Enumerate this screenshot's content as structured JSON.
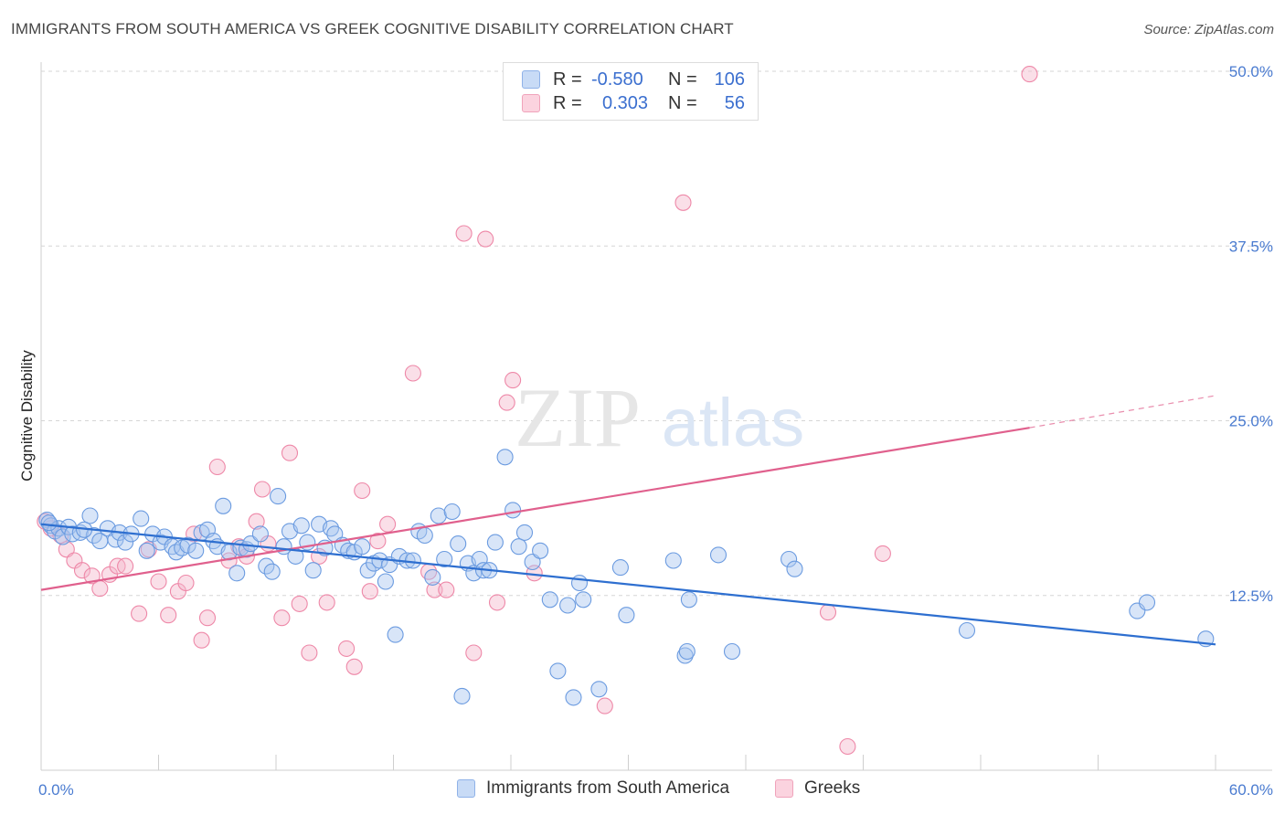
{
  "header": {
    "title": "IMMIGRANTS FROM SOUTH AMERICA VS GREEK COGNITIVE DISABILITY CORRELATION CHART",
    "source": "Source: ZipAtlas.com"
  },
  "watermark": {
    "zip": "ZIP",
    "atlas": "atlas"
  },
  "legend": {
    "rows": [
      {
        "r_label": "R =",
        "r_value": "-0.580",
        "n_label": "N =",
        "n_value": "106",
        "color": "#a8c6f0"
      },
      {
        "r_label": "R =",
        "r_value": "0.303",
        "n_label": "N =",
        "n_value": "56",
        "color": "#f5b8cb"
      }
    ]
  },
  "chart_data": {
    "type": "scatter",
    "title": "IMMIGRANTS FROM SOUTH AMERICA VS GREEK COGNITIVE DISABILITY CORRELATION CHART",
    "xlabel": "",
    "ylabel": "Cognitive Disability",
    "xlim": [
      0,
      60
    ],
    "ylim": [
      0,
      50
    ],
    "x_tick_labels": [
      "0.0%",
      "60.0%"
    ],
    "y_tick_labels": [
      "12.5%",
      "25.0%",
      "37.5%",
      "50.0%"
    ],
    "y_ticks": [
      12.5,
      25.0,
      37.5,
      50.0
    ],
    "grid": true,
    "legend_position": "top-center",
    "series": [
      {
        "name": "Immigrants from South America",
        "color": "#6b9be0",
        "fill": "#a8c6f0",
        "line_color": "#2e6fd0",
        "trend": {
          "x": [
            0,
            60
          ],
          "y": [
            17.6,
            9.0
          ]
        },
        "points": [
          [
            0.3,
            17.9
          ],
          [
            0.5,
            17.5
          ],
          [
            0.7,
            17.1
          ],
          [
            0.9,
            17.3
          ],
          [
            1.1,
            16.7
          ],
          [
            1.4,
            17.4
          ],
          [
            1.6,
            16.9
          ],
          [
            2.0,
            17.0
          ],
          [
            2.5,
            18.2
          ],
          [
            2.7,
            16.8
          ],
          [
            3.0,
            16.4
          ],
          [
            3.4,
            17.3
          ],
          [
            3.8,
            16.5
          ],
          [
            4.0,
            17.0
          ],
          [
            4.3,
            16.3
          ],
          [
            4.6,
            16.9
          ],
          [
            5.1,
            18.0
          ],
          [
            5.4,
            15.7
          ],
          [
            5.7,
            16.9
          ],
          [
            6.1,
            16.3
          ],
          [
            6.3,
            16.7
          ],
          [
            6.7,
            16.0
          ],
          [
            6.9,
            15.6
          ],
          [
            7.2,
            15.9
          ],
          [
            7.5,
            16.1
          ],
          [
            7.9,
            15.7
          ],
          [
            8.2,
            17.0
          ],
          [
            8.5,
            17.2
          ],
          [
            8.8,
            16.4
          ],
          [
            9.0,
            16.0
          ],
          [
            9.3,
            18.9
          ],
          [
            9.6,
            15.6
          ],
          [
            10.0,
            14.1
          ],
          [
            10.2,
            15.9
          ],
          [
            10.5,
            15.8
          ],
          [
            10.7,
            16.2
          ],
          [
            11.2,
            16.9
          ],
          [
            11.5,
            14.6
          ],
          [
            11.8,
            14.2
          ],
          [
            12.1,
            19.6
          ],
          [
            12.4,
            16.0
          ],
          [
            12.7,
            17.1
          ],
          [
            13.0,
            15.3
          ],
          [
            13.3,
            17.5
          ],
          [
            13.6,
            16.3
          ],
          [
            13.9,
            14.3
          ],
          [
            14.2,
            17.6
          ],
          [
            14.5,
            15.9
          ],
          [
            14.8,
            17.3
          ],
          [
            15.0,
            16.9
          ],
          [
            15.4,
            16.1
          ],
          [
            15.7,
            15.7
          ],
          [
            16.0,
            15.6
          ],
          [
            16.4,
            16.0
          ],
          [
            16.7,
            14.3
          ],
          [
            17.0,
            14.8
          ],
          [
            17.3,
            15.0
          ],
          [
            17.6,
            13.5
          ],
          [
            17.8,
            14.7
          ],
          [
            18.1,
            9.7
          ],
          [
            18.3,
            15.3
          ],
          [
            18.7,
            15.0
          ],
          [
            19.0,
            15.0
          ],
          [
            19.3,
            17.1
          ],
          [
            19.6,
            16.8
          ],
          [
            20.0,
            13.8
          ],
          [
            20.3,
            18.2
          ],
          [
            20.6,
            15.1
          ],
          [
            21.0,
            18.5
          ],
          [
            21.3,
            16.2
          ],
          [
            21.5,
            5.3
          ],
          [
            21.8,
            14.8
          ],
          [
            22.1,
            14.1
          ],
          [
            22.4,
            15.1
          ],
          [
            22.6,
            14.3
          ],
          [
            22.9,
            14.3
          ],
          [
            23.2,
            16.3
          ],
          [
            23.7,
            22.4
          ],
          [
            24.1,
            18.6
          ],
          [
            24.4,
            16.0
          ],
          [
            24.7,
            17.0
          ],
          [
            25.1,
            14.9
          ],
          [
            25.5,
            15.7
          ],
          [
            26.0,
            12.2
          ],
          [
            26.4,
            7.1
          ],
          [
            26.9,
            11.8
          ],
          [
            27.2,
            5.2
          ],
          [
            27.5,
            13.4
          ],
          [
            27.7,
            12.2
          ],
          [
            28.5,
            5.8
          ],
          [
            29.6,
            14.5
          ],
          [
            29.9,
            11.1
          ],
          [
            32.3,
            15.0
          ],
          [
            32.9,
            8.2
          ],
          [
            33.0,
            8.5
          ],
          [
            33.1,
            12.2
          ],
          [
            34.6,
            15.4
          ],
          [
            35.3,
            8.5
          ],
          [
            38.2,
            15.1
          ],
          [
            38.5,
            14.4
          ],
          [
            47.3,
            10.0
          ],
          [
            56.0,
            11.4
          ],
          [
            56.5,
            12.0
          ],
          [
            59.5,
            9.4
          ],
          [
            0.4,
            17.7
          ],
          [
            2.2,
            17.2
          ]
        ]
      },
      {
        "name": "Greeks",
        "color": "#ee88a8",
        "fill": "#f5b8cb",
        "line_color": "#e0608d",
        "trend": {
          "x": [
            0,
            50.5
          ],
          "y": [
            12.9,
            24.5
          ]
        },
        "trend_extension": {
          "x": [
            50.5,
            60
          ],
          "y": [
            24.5,
            26.8
          ]
        },
        "points": [
          [
            0.2,
            17.8
          ],
          [
            0.5,
            17.3
          ],
          [
            1.0,
            16.8
          ],
          [
            1.3,
            15.8
          ],
          [
            1.7,
            15.0
          ],
          [
            2.1,
            14.3
          ],
          [
            2.6,
            13.9
          ],
          [
            3.0,
            13.0
          ],
          [
            3.5,
            14.0
          ],
          [
            3.9,
            14.6
          ],
          [
            4.3,
            14.6
          ],
          [
            5.0,
            11.2
          ],
          [
            5.5,
            15.8
          ],
          [
            6.0,
            13.5
          ],
          [
            6.5,
            11.1
          ],
          [
            7.0,
            12.8
          ],
          [
            7.4,
            13.4
          ],
          [
            7.8,
            16.9
          ],
          [
            8.2,
            9.3
          ],
          [
            8.5,
            10.9
          ],
          [
            9.0,
            21.7
          ],
          [
            9.6,
            15.0
          ],
          [
            10.1,
            16.0
          ],
          [
            10.5,
            15.3
          ],
          [
            11.0,
            17.8
          ],
          [
            11.3,
            20.1
          ],
          [
            11.6,
            16.2
          ],
          [
            12.3,
            10.9
          ],
          [
            12.7,
            22.7
          ],
          [
            13.2,
            11.9
          ],
          [
            13.7,
            8.4
          ],
          [
            14.2,
            15.3
          ],
          [
            14.6,
            12.0
          ],
          [
            15.6,
            8.7
          ],
          [
            16.0,
            7.4
          ],
          [
            16.4,
            20.0
          ],
          [
            16.8,
            12.8
          ],
          [
            17.2,
            16.4
          ],
          [
            17.7,
            17.6
          ],
          [
            19.0,
            28.4
          ],
          [
            19.8,
            14.2
          ],
          [
            20.1,
            12.9
          ],
          [
            20.7,
            12.9
          ],
          [
            21.6,
            38.4
          ],
          [
            22.1,
            8.4
          ],
          [
            22.7,
            38.0
          ],
          [
            23.3,
            12.0
          ],
          [
            23.8,
            26.3
          ],
          [
            24.1,
            27.9
          ],
          [
            25.2,
            14.1
          ],
          [
            28.8,
            4.6
          ],
          [
            32.8,
            40.6
          ],
          [
            40.2,
            11.3
          ],
          [
            41.2,
            1.7
          ],
          [
            43.0,
            15.5
          ],
          [
            50.5,
            49.8
          ]
        ]
      }
    ]
  },
  "bottom_legend": [
    {
      "label": "Immigrants from South America",
      "color": "#a8c6f0"
    },
    {
      "label": "Greeks",
      "color": "#f5b8cb"
    }
  ]
}
